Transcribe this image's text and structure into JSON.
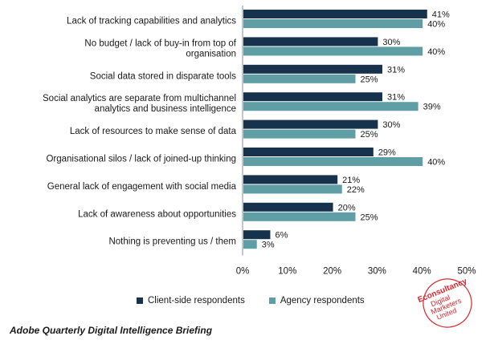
{
  "chart_data": {
    "type": "bar",
    "orientation": "horizontal",
    "categories": [
      [
        "Lack of tracking capabilities and analytics"
      ],
      [
        "No budget / lack of buy-in from top of",
        "organisation"
      ],
      [
        "Social data stored in disparate tools"
      ],
      [
        "Social analytics are separate from multichannel",
        "analytics and business intelligence"
      ],
      [
        "Lack of resources to make sense of data"
      ],
      [
        "Organisational silos / lack of joined-up thinking"
      ],
      [
        "General lack of engagement with social media"
      ],
      [
        "Lack of awareness about opportunities"
      ],
      [
        "Nothing is preventing us / them"
      ]
    ],
    "series": [
      {
        "name": "Client-side respondents",
        "color": "#17324d",
        "values": [
          41,
          30,
          31,
          31,
          30,
          29,
          21,
          20,
          6
        ]
      },
      {
        "name": "Agency respondents",
        "color": "#5f9ea5",
        "values": [
          40,
          40,
          25,
          39,
          25,
          40,
          22,
          25,
          3
        ]
      }
    ],
    "xlim": [
      0,
      50
    ],
    "ticks": [
      0,
      10,
      20,
      30,
      40,
      50
    ],
    "tick_suffix": "%",
    "value_suffix": "%",
    "legend_position": "bottom",
    "grid": false
  },
  "source": "Adobe Quarterly Digital Intelligence Briefing",
  "logo": {
    "lines": [
      "Econsultancy",
      "Digital",
      "Marketers",
      "United"
    ],
    "color": "#d9262c"
  }
}
